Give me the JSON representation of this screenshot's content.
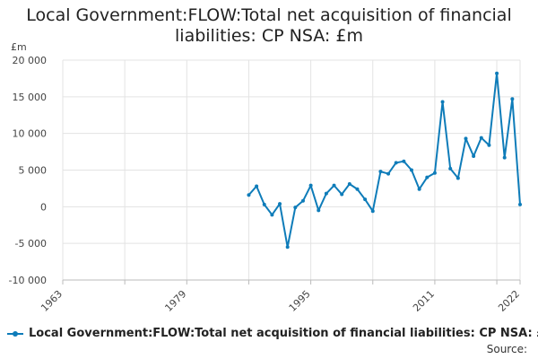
{
  "chart_data": {
    "type": "line",
    "title_line1": "Local Government:FLOW:Total net acquisition of financial",
    "title_line2": "liabilities: CP NSA: £m",
    "ylabel": "£m",
    "ylim": [
      -10000,
      20000
    ],
    "xlim": [
      1963,
      2022
    ],
    "yticks": [
      20000,
      15000,
      10000,
      5000,
      0,
      -5000,
      -10000
    ],
    "ytick_labels": [
      "20 000",
      "15 000",
      "10 000",
      "5 000",
      "0",
      "-5 000",
      "-10 000"
    ],
    "xticks": [
      1963,
      1979,
      1995,
      2011,
      2022
    ],
    "xtick_labels": [
      "1963",
      "1979",
      "1995",
      "2011",
      "2022"
    ],
    "grid": true,
    "legend_position": "bottom",
    "series": [
      {
        "name": "Local Government:FLOW:Total net acquisition of financial liabilities: CP NSA: £m",
        "color": "#0e7cb9",
        "x": [
          1987,
          1988,
          1989,
          1990,
          1991,
          1992,
          1993,
          1994,
          1995,
          1996,
          1997,
          1998,
          1999,
          2000,
          2001,
          2002,
          2003,
          2004,
          2005,
          2006,
          2007,
          2008,
          2009,
          2010,
          2011,
          2012,
          2013,
          2014,
          2015,
          2016,
          2017,
          2018,
          2019,
          2020,
          2021,
          2022
        ],
        "values": [
          1600,
          2800,
          300,
          -1100,
          400,
          -5500,
          -100,
          800,
          2900,
          -500,
          1800,
          2900,
          1700,
          3100,
          2400,
          1000,
          -600,
          4800,
          4500,
          6000,
          6200,
          5000,
          2400,
          4000,
          4600,
          14300,
          5200,
          3900,
          9300,
          6900,
          9400,
          8400,
          18200,
          6700,
          14700,
          300
        ]
      }
    ]
  },
  "legend": {
    "label": "Local Government:FLOW:Total net acquisition of financial liabilities: CP NSA: £m"
  },
  "source_label": "Source:"
}
